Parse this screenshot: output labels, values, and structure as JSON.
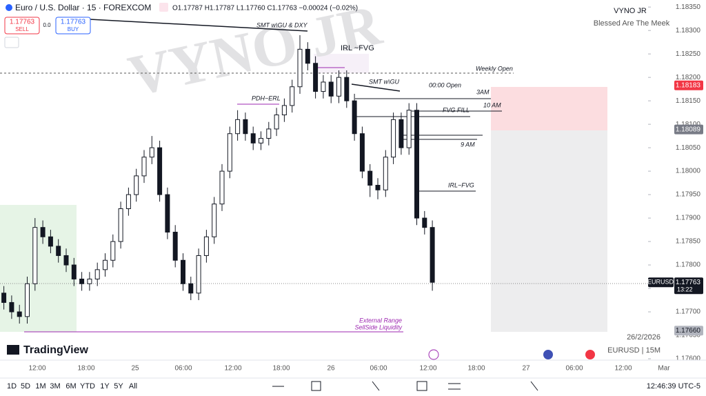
{
  "header": {
    "symbol": "Euro / U.S. Dollar · 15 · FOREXCOM",
    "ohlc": "O1.17787 H1.17787 L1.17760 C1.17763 −0.00024 (−0.02%)",
    "sell_price": "1.17763",
    "sell": "SELL",
    "spread": "0.0",
    "buy_price": "1.17763",
    "buy": "BUY"
  },
  "branding": {
    "name": "VYNO JR",
    "motto": "Blessed Are The Meek",
    "watermark": "VYNO JR",
    "logo": "TradingView",
    "date": "26/2/2026",
    "symbol_tf": "EURUSD | 15M"
  },
  "annotations": [
    "SMT w\\GU & DXY",
    "IRL ~FVG",
    "Weekly Open",
    "SMT w\\GU",
    "00:00 Open",
    "3AM",
    "10 AM",
    "FVG FILL",
    "9 AM",
    "IRL~FVG",
    "PDH~ERL",
    "External Range",
    "SellSide Liquidity"
  ],
  "toolbar": {
    "ranges": [
      "1D",
      "5D",
      "1M",
      "3M",
      "6M",
      "YTD",
      "1Y",
      "5Y",
      "All"
    ],
    "clock": "12:46:39 UTC-5"
  },
  "chart_data": {
    "type": "candlestick",
    "ylim": [
      1.17575,
      1.18365
    ],
    "yticks": [
      {
        "value": 1.1835,
        "label": "1.18350"
      },
      {
        "value": 1.183,
        "label": "1.18300"
      },
      {
        "value": 1.1825,
        "label": "1.18250"
      },
      {
        "value": 1.182,
        "label": "1.18200"
      },
      {
        "value": 1.1815,
        "label": "1.18150"
      },
      {
        "value": 1.181,
        "label": "1.18100"
      },
      {
        "value": 1.1805,
        "label": "1.18050"
      },
      {
        "value": 1.18,
        "label": "1.18000"
      },
      {
        "value": 1.1795,
        "label": "1.17950"
      },
      {
        "value": 1.179,
        "label": "1.17900"
      },
      {
        "value": 1.1785,
        "label": "1.17850"
      },
      {
        "value": 1.178,
        "label": "1.17800"
      },
      {
        "value": 1.1775,
        "label": "1.17750"
      },
      {
        "value": 1.177,
        "label": "1.17700"
      },
      {
        "value": 1.1765,
        "label": "1.17650"
      },
      {
        "value": 1.176,
        "label": "1.17600"
      }
    ],
    "xticks": [
      "12:00",
      "18:00",
      "25",
      "06:00",
      "12:00",
      "18:00",
      "26",
      "06:00",
      "12:00",
      "18:00",
      "27",
      "06:00",
      "12:00",
      "Mar"
    ],
    "price_tags": [
      {
        "value": 1.18183,
        "color": "#f23645"
      },
      {
        "value": 1.18089,
        "color": "#787b86"
      },
      {
        "value": 1.17763,
        "label": "1.17763",
        "name": "EURUSD",
        "timer": "13:22",
        "color": "#131722"
      },
      {
        "value": 1.1766,
        "label": "1.17660",
        "color": "#b2b5be"
      }
    ],
    "up_color": "#ffffff",
    "down_color": "#131722",
    "open": [
      1.1774,
      1.1772,
      1.177,
      1.1769,
      1.1776,
      1.1788,
      1.1786,
      1.1784,
      1.1782,
      1.178,
      1.1777,
      1.1776,
      1.1777,
      1.1779,
      1.1781,
      1.1785,
      1.1792,
      1.1795,
      1.1799,
      1.1803,
      1.1805,
      1.1795,
      1.1787,
      1.1781,
      1.1776,
      1.1774,
      1.1782,
      1.1786,
      1.1793,
      1.18,
      1.1808,
      1.1811,
      1.1808,
      1.1806,
      1.1807,
      1.1809,
      1.1812,
      1.1814,
      1.1818,
      1.1826,
      1.1823,
      1.1817,
      1.1819,
      1.1816,
      1.182,
      1.1815,
      1.1808,
      1.18,
      1.1797,
      1.1796,
      1.1803,
      1.1811,
      1.1805,
      1.1813,
      1.179,
      1.1788
    ],
    "high": [
      1.17755,
      1.17735,
      1.17715,
      1.17775,
      1.179,
      1.17895,
      1.17875,
      1.17855,
      1.17835,
      1.17815,
      1.17785,
      1.17785,
      1.17805,
      1.17825,
      1.17865,
      1.17935,
      1.17965,
      1.18005,
      1.18045,
      1.18075,
      1.18065,
      1.17965,
      1.17885,
      1.17825,
      1.17775,
      1.17835,
      1.17875,
      1.17945,
      1.18015,
      1.18095,
      1.1813,
      1.18125,
      1.18095,
      1.18085,
      1.18105,
      1.18135,
      1.18155,
      1.18195,
      1.1829,
      1.18275,
      1.18245,
      1.18205,
      1.18205,
      1.18215,
      1.18215,
      1.18165,
      1.18095,
      1.18015,
      1.17985,
      1.18045,
      1.18125,
      1.18125,
      1.18145,
      1.18145,
      1.17915,
      1.17895
    ],
    "low": [
      1.17705,
      1.17685,
      1.17675,
      1.17675,
      1.17745,
      1.17845,
      1.17825,
      1.17805,
      1.17785,
      1.17755,
      1.17745,
      1.17745,
      1.17755,
      1.17775,
      1.17795,
      1.17835,
      1.17905,
      1.17935,
      1.17975,
      1.18015,
      1.17935,
      1.17855,
      1.17795,
      1.17745,
      1.17725,
      1.17725,
      1.17805,
      1.17845,
      1.17915,
      1.17985,
      1.18065,
      1.18065,
      1.18045,
      1.18045,
      1.18055,
      1.18075,
      1.18105,
      1.18125,
      1.18165,
      1.18215,
      1.18155,
      1.18155,
      1.18145,
      1.18145,
      1.18135,
      1.18065,
      1.17985,
      1.17945,
      1.1794,
      1.17945,
      1.18015,
      1.18035,
      1.18035,
      1.17885,
      1.17865,
      1.17745
    ],
    "close": [
      1.1772,
      1.177,
      1.1769,
      1.1776,
      1.1788,
      1.1786,
      1.1784,
      1.1782,
      1.178,
      1.1777,
      1.1776,
      1.1777,
      1.1779,
      1.1781,
      1.1785,
      1.1792,
      1.1795,
      1.1799,
      1.1803,
      1.1805,
      1.1795,
      1.1787,
      1.1781,
      1.1776,
      1.1774,
      1.1782,
      1.1786,
      1.1793,
      1.18,
      1.1808,
      1.1811,
      1.1808,
      1.1806,
      1.1807,
      1.1809,
      1.1812,
      1.1814,
      1.1818,
      1.1826,
      1.1823,
      1.1817,
      1.1819,
      1.1816,
      1.182,
      1.1815,
      1.1808,
      1.18,
      1.1797,
      1.1796,
      1.1803,
      1.1811,
      1.1805,
      1.1813,
      1.179,
      1.1788,
      1.17763
    ]
  }
}
